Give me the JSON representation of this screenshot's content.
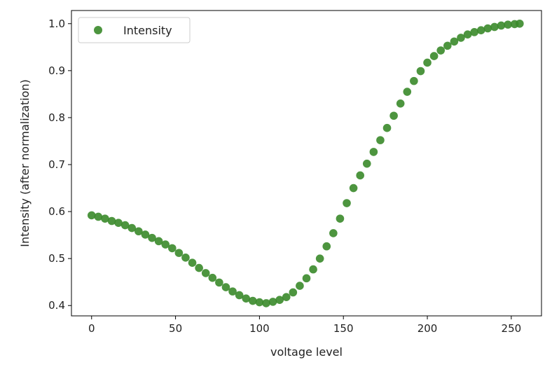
{
  "chart_data": {
    "type": "scatter",
    "title": "",
    "xlabel": "voltage level",
    "ylabel": "Intensity (after normalization)",
    "xlim": [
      -12,
      268
    ],
    "ylim": [
      0.378,
      1.028
    ],
    "xticks": [
      0,
      50,
      100,
      150,
      200,
      250
    ],
    "yticks": [
      0.4,
      0.5,
      0.6,
      0.7,
      0.8,
      0.9,
      1.0
    ],
    "xtick_labels": [
      "0",
      "50",
      "100",
      "150",
      "200",
      "250"
    ],
    "ytick_labels": [
      "0.4",
      "0.5",
      "0.6",
      "0.7",
      "0.8",
      "0.9",
      "1.0"
    ],
    "grid": false,
    "legend": {
      "position": "top-left"
    },
    "series": [
      {
        "name": "Intensity",
        "color": "#3a8a2a",
        "x": [
          0,
          4,
          8,
          12,
          16,
          20,
          24,
          28,
          32,
          36,
          40,
          44,
          48,
          52,
          56,
          60,
          64,
          68,
          72,
          76,
          80,
          84,
          88,
          92,
          96,
          100,
          104,
          108,
          112,
          116,
          120,
          124,
          128,
          132,
          136,
          140,
          144,
          148,
          152,
          156,
          160,
          164,
          168,
          172,
          176,
          180,
          184,
          188,
          192,
          196,
          200,
          204,
          208,
          212,
          216,
          220,
          224,
          228,
          232,
          236,
          240,
          244,
          248,
          252,
          255
        ],
        "y": [
          0.592,
          0.589,
          0.585,
          0.58,
          0.576,
          0.571,
          0.565,
          0.558,
          0.551,
          0.544,
          0.537,
          0.53,
          0.522,
          0.512,
          0.502,
          0.491,
          0.48,
          0.469,
          0.459,
          0.449,
          0.439,
          0.43,
          0.422,
          0.415,
          0.41,
          0.407,
          0.405,
          0.408,
          0.412,
          0.418,
          0.428,
          0.442,
          0.458,
          0.477,
          0.5,
          0.526,
          0.554,
          0.585,
          0.618,
          0.65,
          0.677,
          0.702,
          0.727,
          0.752,
          0.778,
          0.804,
          0.83,
          0.855,
          0.878,
          0.899,
          0.917,
          0.931,
          0.943,
          0.953,
          0.962,
          0.97,
          0.977,
          0.982,
          0.986,
          0.99,
          0.993,
          0.996,
          0.998,
          0.999,
          1.0
        ]
      }
    ]
  }
}
